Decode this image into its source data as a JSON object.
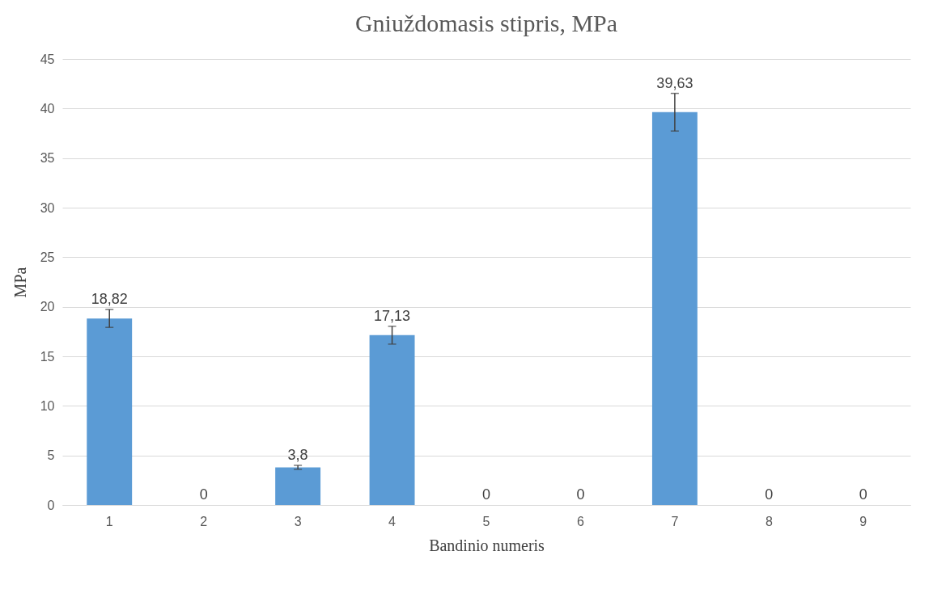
{
  "chart_data": {
    "type": "bar",
    "title": "Gniuždomasis stipris, MPa",
    "xlabel": "Bandinio numeris",
    "ylabel": "MPa",
    "categories": [
      "1",
      "2",
      "3",
      "4",
      "5",
      "6",
      "7",
      "8",
      "9"
    ],
    "values": [
      18.82,
      0,
      3.8,
      17.13,
      0,
      0,
      39.63,
      0,
      0
    ],
    "value_labels": [
      "18,82",
      "0",
      "3,8",
      "17,13",
      "0",
      "0",
      "39,63",
      "0",
      "0"
    ],
    "errors": [
      0.9,
      null,
      0.2,
      0.9,
      null,
      null,
      1.9,
      null,
      null
    ],
    "color": "#5b9bd5",
    "ylim": [
      0,
      45
    ],
    "yticks": [
      0,
      5,
      10,
      15,
      20,
      25,
      30,
      35,
      40,
      45
    ],
    "grid": "y"
  }
}
